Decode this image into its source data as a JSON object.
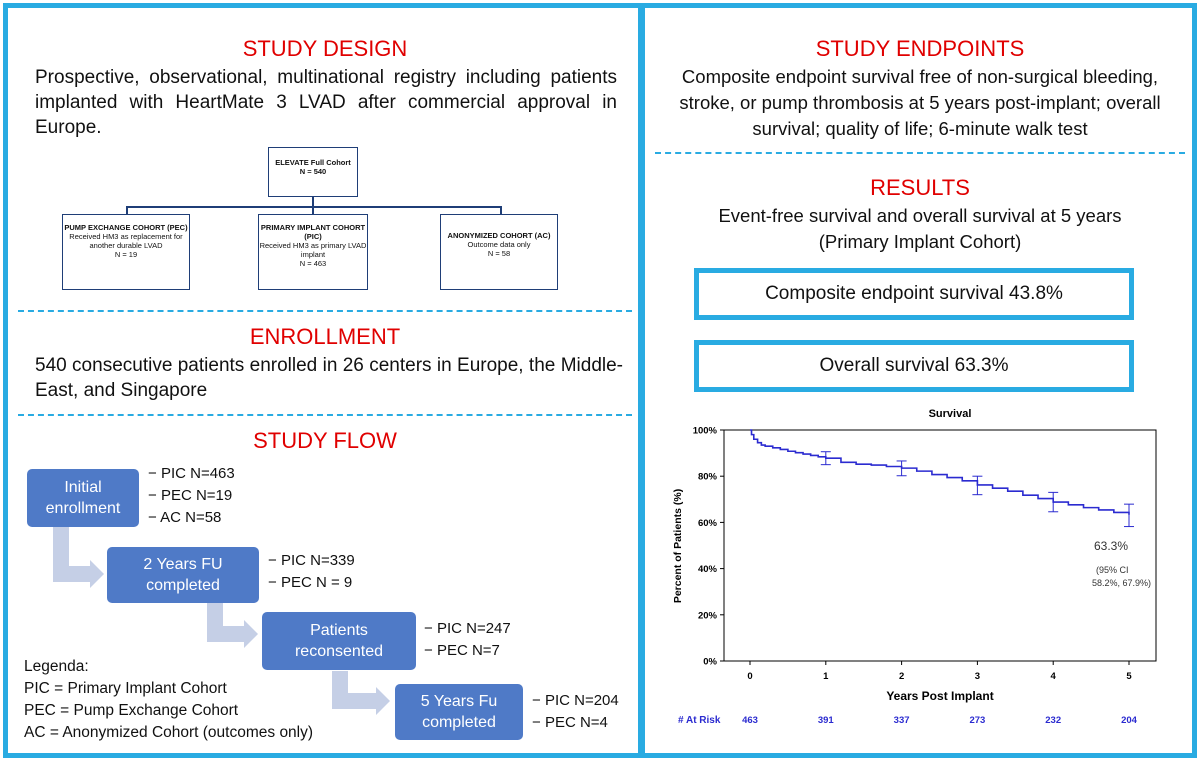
{
  "study_design": {
    "title": "STUDY DESIGN",
    "text": "Prospective, observational, multinational registry including patients implanted with HeartMate 3 LVAD after commercial approval in Europe."
  },
  "org_chart": {
    "top": {
      "name": "ELEVATE Full Cohort",
      "n": "N = 540"
    },
    "children": [
      {
        "name": "PUMP EXCHANGE COHORT (PEC)",
        "desc": "Received HM3 as replacement for another durable LVAD",
        "n": "N = 19"
      },
      {
        "name": "PRIMARY IMPLANT COHORT (PIC)",
        "desc": "Received HM3 as primary LVAD implant",
        "n": "N = 463"
      },
      {
        "name": "ANONYMIZED COHORT (AC)",
        "desc": "Outcome data only",
        "n": "N = 58"
      }
    ]
  },
  "enrollment": {
    "title": "ENROLLMENT",
    "text": "540 consecutive patients enrolled in 26 centers in Europe, the Middle-East, and Singapore"
  },
  "study_flow": {
    "title": "STUDY FLOW",
    "steps": [
      {
        "label": "Initial enrollment",
        "items": [
          "PIC N=463",
          "PEC N=19",
          "AC N=58"
        ]
      },
      {
        "label": "2 Years FU completed",
        "items": [
          "PIC N=339",
          "PEC N = 9"
        ]
      },
      {
        "label": "Patients reconsented",
        "items": [
          "PIC N=247",
          "PEC N=7"
        ]
      },
      {
        "label": "5 Years Fu completed",
        "items": [
          "PIC N=204",
          "PEC N=4"
        ]
      }
    ],
    "legend": {
      "title": "Legenda:",
      "items": [
        "PIC = Primary Implant Cohort",
        "PEC = Pump Exchange Cohort",
        "AC = Anonymized Cohort (outcomes only)"
      ]
    }
  },
  "study_endpoints": {
    "title": "STUDY ENDPOINTS",
    "text": "Composite endpoint survival free of non-surgical bleeding, stroke, or pump thrombosis at 5 years post-implant; overall survival; quality of life; 6-minute walk test"
  },
  "results": {
    "title": "RESULTS",
    "subtitle_line1": "Event-free survival and overall survival at 5 years",
    "subtitle_line2": "(Primary Implant Cohort)",
    "box1": "Composite endpoint survival 43.8%",
    "box2": "Overall survival 63.3%"
  },
  "colors": {
    "accent": "#29abe2",
    "title_red": "#e00000",
    "flow_blue": "#4f7ac7",
    "curve": "#2b2bd0"
  },
  "chart_data": {
    "type": "line",
    "title": "Survival",
    "xlabel": "Years Post Implant",
    "ylabel": "Percent of Patients (%)",
    "xlim": [
      0,
      5
    ],
    "ylim": [
      0,
      100
    ],
    "xticks": [
      "0",
      "1",
      "2",
      "3",
      "4",
      "5"
    ],
    "yticks": [
      "0%",
      "20%",
      "40%",
      "60%",
      "80%",
      "100%"
    ],
    "series": [
      {
        "x": [
          0,
          0.02,
          0.05,
          0.1,
          0.15,
          0.2,
          0.3,
          0.4,
          0.5,
          0.6,
          0.7,
          0.8,
          0.9,
          1.0,
          1.2,
          1.4,
          1.6,
          1.8,
          2.0,
          2.2,
          2.4,
          2.6,
          2.8,
          3.0,
          3.2,
          3.4,
          3.6,
          3.8,
          4.0,
          4.2,
          4.4,
          4.6,
          4.8,
          5.0
        ],
        "y": [
          100,
          98,
          96,
          94.5,
          93.5,
          93,
          92.3,
          91.6,
          90.8,
          90.2,
          89.6,
          89,
          88.4,
          87.8,
          86,
          85.2,
          84.8,
          84.2,
          83.5,
          82.2,
          80.7,
          79.4,
          78,
          76.2,
          74.8,
          73.5,
          71.8,
          70.3,
          68.8,
          67.6,
          66.4,
          65.4,
          64.3,
          63.3
        ]
      }
    ],
    "error_bars": [
      {
        "x": 1,
        "y": 87.8,
        "low": 85.0,
        "high": 90.6
      },
      {
        "x": 2,
        "y": 83.5,
        "low": 80.2,
        "high": 86.6
      },
      {
        "x": 3,
        "y": 76.2,
        "low": 72.0,
        "high": 80.0
      },
      {
        "x": 4,
        "y": 68.8,
        "low": 64.6,
        "high": 73.0
      },
      {
        "x": 5,
        "y": 63.3,
        "low": 58.2,
        "high": 67.9
      }
    ],
    "annotation": {
      "value": "63.3%",
      "ci_line1": "(95% CI",
      "ci_line2": "58.2%, 67.9%)"
    },
    "at_risk": {
      "label": "# At Risk",
      "values": [
        "463",
        "391",
        "337",
        "273",
        "232",
        "204"
      ]
    }
  }
}
